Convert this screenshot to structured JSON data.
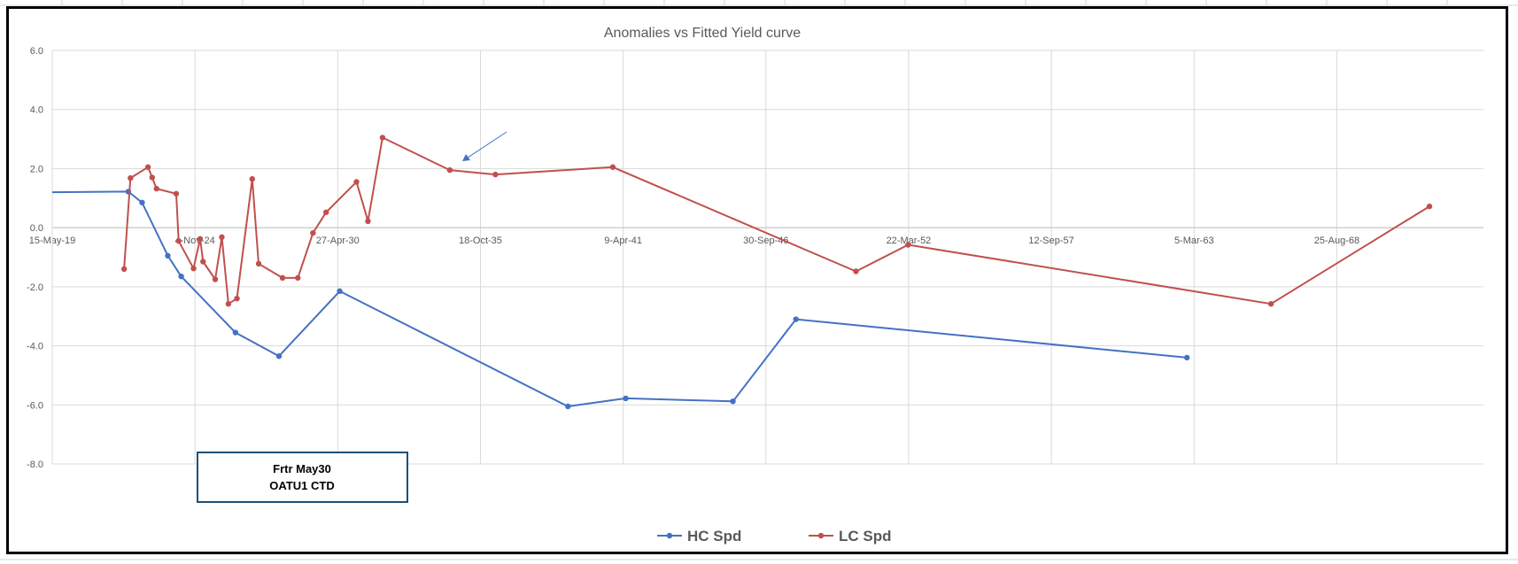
{
  "chart_data": {
    "type": "line",
    "title": "Anomalies vs Fitted Yield curve",
    "xlabel": "",
    "ylabel": "",
    "ylim": [
      -8,
      6
    ],
    "yticks": [
      "6.0",
      "4.0",
      "2.0",
      "0.0",
      "-2.0",
      "-4.0",
      "-6.0",
      "-8.0"
    ],
    "x_is_date": true,
    "xlim": [
      "2019-05-15",
      "2074-04-11"
    ],
    "xticks": [
      "15-May-19",
      "4-Nov-24",
      "27-Apr-30",
      "18-Oct-35",
      "9-Apr-41",
      "30-Sep-46",
      "22-Mar-52",
      "12-Sep-57",
      "5-Mar-63",
      "25-Aug-68"
    ],
    "xtick_dates": [
      "2019-05-15",
      "2024-11-04",
      "2030-04-27",
      "2035-10-18",
      "2041-04-09",
      "2046-09-30",
      "2052-03-22",
      "2057-09-12",
      "2063-03-05",
      "2068-08-25"
    ],
    "grid": true,
    "legend_position": "bottom",
    "series": [
      {
        "name": "HC Spd",
        "color": "#4472C4",
        "x": [
          "2019-05-15",
          "2022-04-15",
          "2022-10-25",
          "2023-10-20",
          "2024-04-25",
          "2026-05-25",
          "2028-01-25",
          "2030-05-25",
          "2039-02-25",
          "2041-05-15",
          "2045-06-25",
          "2047-11-25",
          "2062-11-25"
        ],
        "y": [
          1.2,
          1.22,
          0.85,
          -0.95,
          -1.65,
          -3.55,
          -4.35,
          -2.15,
          -6.05,
          -5.78,
          -5.88,
          -3.1,
          -4.4
        ]
      },
      {
        "name": "LC Spd",
        "color": "#C0504D",
        "hide_first_marker": false,
        "x": [
          "2022-02-15",
          "2022-05-15",
          "2023-01-15",
          "2023-03-15",
          "2023-05-15",
          "2024-02-15",
          "2024-03-20",
          "2024-10-15",
          "2025-01-15",
          "2025-02-25",
          "2025-08-15",
          "2025-11-15",
          "2026-02-15",
          "2026-06-15",
          "2027-01-15",
          "2027-04-15",
          "2028-03-15",
          "2028-10-15",
          "2029-05-15",
          "2029-11-15",
          "2031-01-15",
          "2031-06-25",
          "2032-01-15",
          "2034-08-15",
          "2036-05-15",
          "2040-11-15",
          "2050-03-15",
          "2052-03-15",
          "2066-02-15",
          "2072-03-15"
        ],
        "y": [
          -1.4,
          1.68,
          2.05,
          1.7,
          1.32,
          1.15,
          -0.45,
          -1.38,
          -0.38,
          -1.15,
          -1.75,
          -0.32,
          -2.58,
          -2.4,
          1.65,
          -1.22,
          -1.7,
          -1.7,
          -0.18,
          0.52,
          1.55,
          0.22,
          3.05,
          1.95,
          1.8,
          2.05,
          -1.48,
          -0.58,
          -2.58,
          0.72
        ]
      }
    ],
    "annotation": {
      "line1": "Frtr May30",
      "line2": "OATU1 CTD"
    },
    "arrow_annotation": true
  }
}
